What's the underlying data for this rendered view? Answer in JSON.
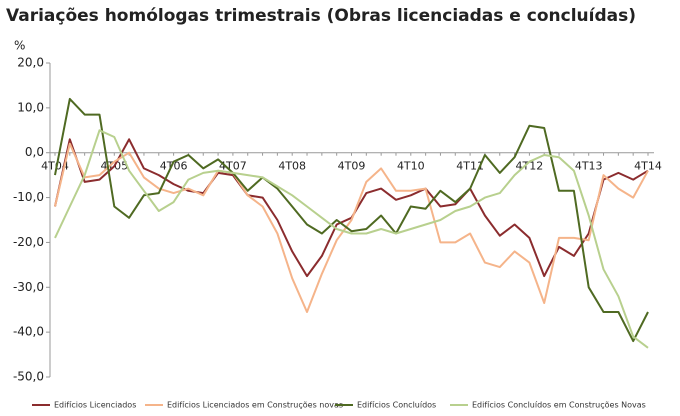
{
  "chart_data": {
    "type": "line",
    "title": "Variações homólogas trimestrais (Obras licenciadas e concluídas)",
    "y_label": "%",
    "categories": [
      "4T04",
      null,
      null,
      null,
      "4T05",
      null,
      null,
      null,
      "4T06",
      null,
      null,
      null,
      "4T07",
      null,
      null,
      null,
      "4T08",
      null,
      null,
      null,
      "4T09",
      null,
      null,
      null,
      "4T10",
      null,
      null,
      null,
      "4T11",
      null,
      null,
      null,
      "4T12",
      null,
      null,
      null,
      "4T13",
      null,
      null,
      null,
      "4T14"
    ],
    "ylim": [
      -50,
      20
    ],
    "yticks": [
      {
        "value": -50,
        "label": "-50,0"
      },
      {
        "value": -40,
        "label": "-40,0"
      },
      {
        "value": -30,
        "label": "-30,0"
      },
      {
        "value": -20,
        "label": "-20,0"
      },
      {
        "value": -10,
        "label": "-10,0"
      },
      {
        "value": 0,
        "label": "0,0"
      },
      {
        "value": 10,
        "label": "10,0"
      },
      {
        "value": 20,
        "label": "20,0"
      }
    ],
    "grid": false,
    "legend": "bottom",
    "series": [
      {
        "name": "Edifícios Licenciados",
        "color": "#8b2c2e",
        "values": [
          -12,
          3,
          -6.5,
          -6,
          -3,
          3,
          -3.5,
          -5,
          -7,
          -8.5,
          -9,
          -4.5,
          -5,
          -9.5,
          -10,
          -15,
          -22,
          -27.5,
          -23,
          -16,
          -14.5,
          -9,
          -8,
          -10.5,
          -9.5,
          -8,
          -12,
          -11.5,
          -8,
          -14,
          -18.5,
          -16,
          -19,
          -27.5,
          -21,
          -23,
          -18,
          -6,
          -4.5,
          -6,
          -4
        ]
      },
      {
        "name": "Edifícios Licenciados em Construções novas",
        "color": "#f5b48a",
        "values": [
          -12,
          2,
          -5.5,
          -5,
          -2,
          0,
          -5.5,
          -8,
          -9,
          -8,
          -9.5,
          -4,
          -4.5,
          -9.5,
          -12,
          -18,
          -28,
          -35.5,
          -27,
          -19.5,
          -15,
          -6.5,
          -3.5,
          -8.5,
          -8.5,
          -8,
          -20,
          -20,
          -18,
          -24.5,
          -25.5,
          -22,
          -24.5,
          -33.5,
          -19,
          -19,
          -19.5,
          -5,
          -8,
          -10,
          -4
        ]
      },
      {
        "name": "Edifícios Concluídos",
        "color": "#4f6a22",
        "values": [
          -5,
          12,
          8.5,
          8.5,
          -12,
          -14.5,
          -9.5,
          -9,
          -2,
          -0.5,
          -3.5,
          -1.5,
          -4.5,
          -8.5,
          -5.5,
          -8,
          -12,
          -16,
          -18,
          -15,
          -17.5,
          -17,
          -14,
          -18,
          -12,
          -12.5,
          -8.5,
          -11,
          -8,
          -0.5,
          -4.5,
          -1,
          6,
          5.5,
          -8.5,
          -8.5,
          -30,
          -35.5,
          -35.5,
          -42,
          -35.5
        ]
      },
      {
        "name": "Edifícios Concluídos em Construções Novas",
        "color": "#b8d08e",
        "values": [
          -19,
          -12,
          -5,
          5,
          3.5,
          -4,
          -8.5,
          -13,
          -11,
          -6,
          -4.5,
          -4,
          -4.5,
          -5,
          -5.5,
          -7.5,
          -9.5,
          -12,
          -14.5,
          -17,
          -18,
          -18,
          -17,
          -18,
          -17,
          -16,
          -15,
          -13,
          -12,
          -10,
          -9,
          -5,
          -2,
          -0.5,
          -1,
          -4,
          -14,
          -26,
          -32,
          -41,
          -43.5
        ]
      }
    ]
  }
}
